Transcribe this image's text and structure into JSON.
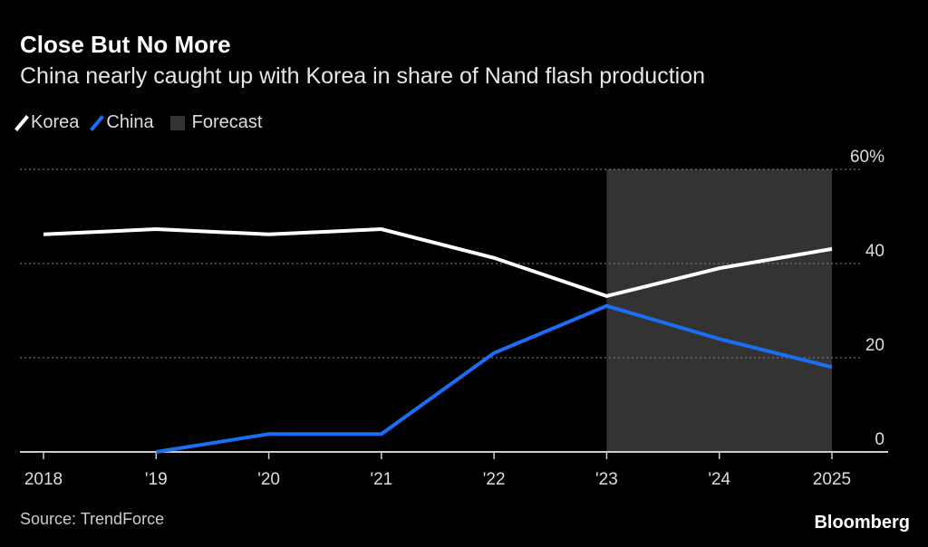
{
  "chart_data": {
    "type": "line",
    "title": "Close But No More",
    "subtitle": "China nearly caught up with Korea in share of Nand flash production",
    "x": [
      2018,
      2019,
      2020,
      2021,
      2022,
      2023,
      2024,
      2025
    ],
    "x_tick_labels": [
      "2018",
      "'19",
      "'20",
      "'21",
      "'22",
      "'23",
      "'24",
      "2025"
    ],
    "y_tick_labels": [
      "60%",
      "40",
      "20",
      "0"
    ],
    "y_ticks": [
      60,
      40,
      20,
      0
    ],
    "ylim": [
      0,
      60
    ],
    "series": [
      {
        "name": "Korea",
        "color": "#ffffff",
        "values": [
          46.2,
          47.3,
          46.2,
          47.3,
          41.2,
          33.1,
          39,
          43.1
        ]
      },
      {
        "name": "China",
        "color": "#1a6ef5",
        "values": [
          null,
          0,
          3.8,
          3.8,
          21,
          31,
          24,
          18
        ]
      }
    ],
    "forecast": {
      "label": "Forecast",
      "from": 2023,
      "to": 2025,
      "color": "#333333"
    },
    "legend_position": "top-left",
    "source": "Source: TrendForce",
    "brand": "Bloomberg"
  }
}
